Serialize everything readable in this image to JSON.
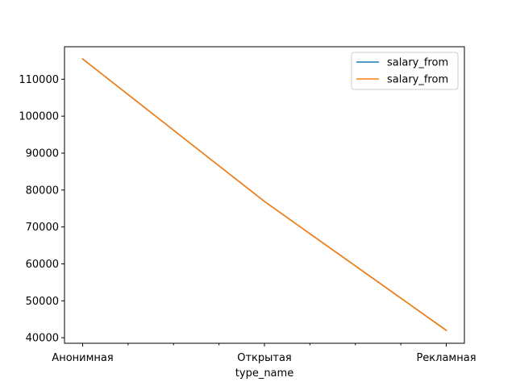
{
  "chart_data": {
    "type": "line",
    "title": "",
    "xlabel": "type_name",
    "ylabel": "",
    "categories": [
      "Анонимная",
      "Открытая",
      "Рекламная"
    ],
    "x_ticks": {
      "major": [
        "Анонимная",
        "Открытая",
        "Рекламная"
      ],
      "minor_between_majors": 3
    },
    "y_ticks": [
      40000,
      50000,
      60000,
      70000,
      80000,
      90000,
      100000,
      110000
    ],
    "ylim": [
      38500,
      118800
    ],
    "grid": false,
    "legend_position": "top-right",
    "series": [
      {
        "name": "salary_from",
        "color": "#1f77b4",
        "values": [
          115500,
          76900,
          42000
        ]
      },
      {
        "name": "salary_from",
        "color": "#ff7f0e",
        "values": [
          115500,
          76900,
          42000
        ]
      }
    ]
  }
}
